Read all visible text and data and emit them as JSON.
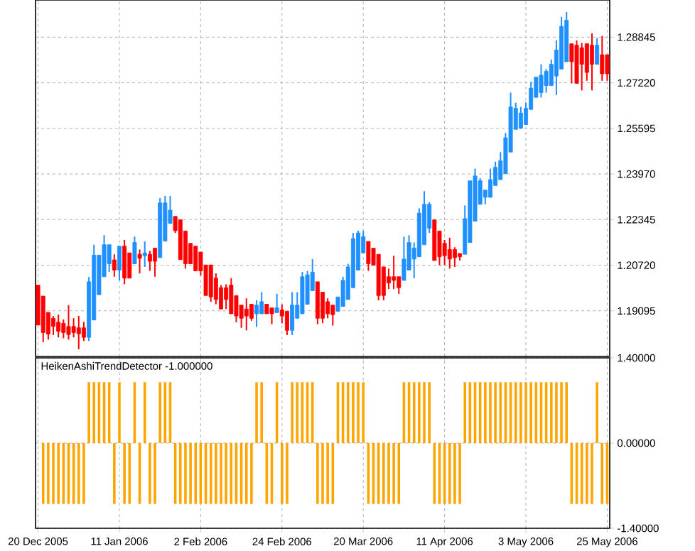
{
  "chart_data": [
    {
      "type": "candlestick",
      "categories": [
        null,
        null,
        null,
        null,
        null,
        null,
        null,
        null,
        null,
        null,
        null,
        null,
        null,
        null,
        null,
        null,
        null,
        null,
        null,
        null,
        null,
        null,
        null,
        null,
        null,
        null,
        null,
        null,
        null,
        null,
        null,
        null,
        null,
        null,
        null,
        null,
        null,
        null,
        null,
        null,
        null,
        null,
        null,
        null,
        null,
        null,
        null,
        null,
        null,
        null,
        null,
        null,
        null,
        null,
        null,
        null,
        null,
        null,
        null,
        null,
        null,
        null,
        null,
        null,
        null,
        null,
        null,
        null,
        null,
        null,
        null,
        null,
        null,
        null,
        null,
        null,
        null,
        null,
        null,
        null,
        null,
        null,
        null,
        null,
        null,
        null,
        null,
        null,
        null,
        null,
        null,
        null,
        null,
        null,
        null,
        null,
        null,
        null,
        null,
        null,
        null,
        null,
        null,
        null,
        null,
        null,
        null,
        null,
        null,
        null,
        null,
        null,
        null
      ],
      "ohlc": [
        [
          1.2001,
          1.2001,
          1.1859,
          1.1859
        ],
        [
          1.1962,
          1.1962,
          1.1798,
          1.1832
        ],
        [
          1.1904,
          1.1904,
          1.1807,
          1.1827
        ],
        [
          1.1883,
          1.1891,
          1.1823,
          1.1854
        ],
        [
          1.1869,
          1.1896,
          1.1815,
          1.1837
        ],
        [
          1.1865,
          1.1879,
          1.1812,
          1.1832
        ],
        [
          1.1854,
          1.193,
          1.1807,
          1.1825
        ],
        [
          1.1854,
          1.1883,
          1.1815,
          1.1832
        ],
        [
          1.1849,
          1.1891,
          1.1773,
          1.1828
        ],
        [
          1.1849,
          1.187,
          1.1802,
          1.1815
        ],
        [
          1.1815,
          1.203,
          1.1802,
          1.2013
        ],
        [
          1.1877,
          1.2145,
          1.1877,
          1.2108
        ],
        [
          1.1967,
          1.2108,
          1.1967,
          1.2108
        ],
        [
          1.2031,
          1.2179,
          1.2031,
          1.2145
        ],
        [
          1.2077,
          1.2145,
          1.2048,
          1.2145
        ],
        [
          1.2091,
          1.2111,
          1.2031,
          1.2055
        ],
        [
          1.2055,
          1.214,
          1.2018,
          1.214
        ],
        [
          1.214,
          1.2162,
          1.2004,
          1.2026
        ],
        [
          1.2116,
          1.2116,
          1.2026,
          1.2026
        ],
        [
          1.2077,
          1.2174,
          1.2077,
          1.2153
        ],
        [
          1.2111,
          1.2128,
          1.2043,
          1.2097
        ],
        [
          1.2106,
          1.2157,
          1.2066,
          1.2116
        ],
        [
          1.2111,
          1.2123,
          1.2052,
          1.2086
        ],
        [
          1.2133,
          1.2133,
          1.2031,
          1.2086
        ],
        [
          1.2099,
          1.2311,
          1.2099,
          1.2294
        ],
        [
          1.2158,
          1.2319,
          1.2158,
          1.2294
        ],
        [
          1.2221,
          1.2319,
          1.2221,
          1.2268
        ],
        [
          1.2246,
          1.2246,
          1.2187,
          1.2195
        ],
        [
          1.2234,
          1.2234,
          1.2092,
          1.2092
        ],
        [
          1.2194,
          1.2194,
          1.206,
          1.2077
        ],
        [
          1.215,
          1.215,
          1.2077,
          1.2077
        ],
        [
          1.214,
          1.214,
          1.2052,
          1.2052
        ],
        [
          1.2119,
          1.2119,
          1.2035,
          1.2052
        ],
        [
          1.2073,
          1.2073,
          1.1964,
          1.1964
        ],
        [
          1.2073,
          1.2073,
          1.1942,
          1.1959
        ],
        [
          1.2026,
          1.2043,
          1.1933,
          1.195
        ],
        [
          1.1992,
          1.2001,
          1.1916,
          1.1916
        ],
        [
          1.1992,
          1.2004,
          1.1916,
          1.195
        ],
        [
          1.2001,
          1.2026,
          1.1899,
          1.1899
        ],
        [
          1.1964,
          1.1964,
          1.1869,
          1.1891
        ],
        [
          1.193,
          1.193,
          1.1849,
          1.1883
        ],
        [
          1.1916,
          1.1954,
          1.184,
          1.1891
        ],
        [
          1.1933,
          1.1933,
          1.1874,
          1.1883
        ],
        [
          1.1899,
          1.1947,
          1.1852,
          1.193
        ],
        [
          1.1899,
          1.1976,
          1.1899,
          1.1942
        ],
        [
          1.1933,
          1.1933,
          1.1899,
          1.1899
        ],
        [
          1.192,
          1.192,
          1.1862,
          1.1899
        ],
        [
          1.1903,
          1.197,
          1.1903,
          1.192
        ],
        [
          1.1913,
          1.1933,
          1.1865,
          1.1891
        ],
        [
          1.1908,
          1.1908,
          1.1823,
          1.184
        ],
        [
          1.184,
          1.1976,
          1.1823,
          1.193
        ],
        [
          1.1883,
          1.1976,
          1.1883,
          1.193
        ],
        [
          1.1899,
          1.2048,
          1.1899,
          1.2031
        ],
        [
          1.1933,
          1.2052,
          1.1933,
          1.2038
        ],
        [
          1.1981,
          1.2094,
          1.1981,
          1.2047
        ],
        [
          1.2013,
          1.2013,
          1.1862,
          1.1883
        ],
        [
          1.1976,
          1.1976,
          1.1865,
          1.1883
        ],
        [
          1.1942,
          1.1954,
          1.1883,
          1.1899
        ],
        [
          1.193,
          1.193,
          1.1857,
          1.1896
        ],
        [
          1.1908,
          1.1959,
          1.1908,
          1.1959
        ],
        [
          1.1925,
          1.2031,
          1.1925,
          1.2018
        ],
        [
          1.195,
          1.2077,
          1.195,
          1.2066
        ],
        [
          1.1992,
          1.2187,
          1.1992,
          1.2167
        ],
        [
          1.2055,
          1.2195,
          1.2055,
          1.2187
        ],
        [
          1.2116,
          1.2195,
          1.2116,
          1.2174
        ],
        [
          1.2157,
          1.2157,
          1.2052,
          1.2077
        ],
        [
          1.2133,
          1.2133,
          1.2072,
          1.2072
        ],
        [
          1.2111,
          1.2111,
          1.1947,
          1.1964
        ],
        [
          1.2066,
          1.2066,
          1.1947,
          1.1964
        ],
        [
          1.2031,
          1.206,
          1.1987,
          1.2009
        ],
        [
          1.2031,
          1.2106,
          1.1987,
          1.2018
        ],
        [
          1.2031,
          1.2031,
          1.197,
          1.1992
        ],
        [
          1.2018,
          1.2174,
          1.2018,
          1.2094
        ],
        [
          1.2055,
          1.2179,
          1.2055,
          1.2153
        ],
        [
          1.2094,
          1.2153,
          1.2026,
          1.2133
        ],
        [
          1.2102,
          1.2275,
          1.2102,
          1.2258
        ],
        [
          1.2145,
          1.2336,
          1.2145,
          1.2289
        ],
        [
          1.2204,
          1.2297,
          1.2187,
          1.2289
        ],
        [
          1.2234,
          1.2234,
          1.2089,
          1.2089
        ],
        [
          1.2194,
          1.2194,
          1.2072,
          1.2102
        ],
        [
          1.215,
          1.2162,
          1.2072,
          1.2106
        ],
        [
          1.2128,
          1.217,
          1.206,
          1.2094
        ],
        [
          1.2128,
          1.2136,
          1.2066,
          1.2099
        ],
        [
          1.2114,
          1.2114,
          1.2089,
          1.2102
        ],
        [
          1.2111,
          1.2285,
          1.2111,
          1.2238
        ],
        [
          1.2153,
          1.2373,
          1.2153,
          1.2373
        ],
        [
          1.2229,
          1.2416,
          1.2229,
          1.239
        ],
        [
          1.2289,
          1.2382,
          1.2289,
          1.2373
        ],
        [
          1.2314,
          1.234,
          1.2289,
          1.234
        ],
        [
          1.2314,
          1.2416,
          1.2314,
          1.2377
        ],
        [
          1.2356,
          1.2441,
          1.2356,
          1.2421
        ],
        [
          1.2377,
          1.2475,
          1.2377,
          1.2444
        ],
        [
          1.2398,
          1.2543,
          1.2398,
          1.2526
        ],
        [
          1.2475,
          1.2687,
          1.2475,
          1.2636
        ],
        [
          1.2556,
          1.2651,
          1.2556,
          1.2631
        ],
        [
          1.256,
          1.2636,
          1.256,
          1.2614
        ],
        [
          1.2573,
          1.2652,
          1.2573,
          1.2631
        ],
        [
          1.2627,
          1.2725,
          1.2627,
          1.2703
        ],
        [
          1.267,
          1.2742,
          1.267,
          1.2742
        ],
        [
          1.2687,
          1.2788,
          1.267,
          1.2749
        ],
        [
          1.2712,
          1.2771,
          1.2687,
          1.2763
        ],
        [
          1.2712,
          1.2805,
          1.2712,
          1.2788
        ],
        [
          1.2746,
          1.2873,
          1.2678,
          1.2839
        ],
        [
          1.2771,
          1.2957,
          1.2771,
          1.2923
        ],
        [
          1.2797,
          1.2974,
          1.2797,
          1.2945
        ],
        [
          1.2861,
          1.2861,
          1.272,
          1.2797
        ],
        [
          1.2856,
          1.2873,
          1.272,
          1.272
        ],
        [
          1.2847,
          1.2864,
          1.2695,
          1.2788
        ],
        [
          1.2861,
          1.2861,
          1.2729,
          1.2759
        ],
        [
          1.2856,
          1.2898,
          1.2695,
          1.2788
        ],
        [
          1.2788,
          1.2881,
          1.2788,
          1.2856
        ],
        [
          1.2822,
          1.2889,
          1.2729,
          1.2754
        ],
        [
          1.2822,
          1.2822,
          1.2729,
          1.2754
        ]
      ],
      "colors": [
        "#ff0000",
        "#ff0000",
        "#ff0000",
        "#ff0000",
        "#ff0000",
        "#ff0000",
        "#ff0000",
        "#ff0000",
        "#ff0000",
        "#ff0000",
        "#1e90ff",
        "#1e90ff",
        "#1e90ff",
        "#1e90ff",
        "#1e90ff",
        "#ff0000",
        "#1e90ff",
        "#ff0000",
        "#ff0000",
        "#1e90ff",
        "#ff0000",
        "#1e90ff",
        "#ff0000",
        "#ff0000",
        "#1e90ff",
        "#1e90ff",
        "#1e90ff",
        "#ff0000",
        "#ff0000",
        "#ff0000",
        "#ff0000",
        "#ff0000",
        "#ff0000",
        "#ff0000",
        "#ff0000",
        "#ff0000",
        "#ff0000",
        "#ff0000",
        "#ff0000",
        "#ff0000",
        "#ff0000",
        "#ff0000",
        "#ff0000",
        "#1e90ff",
        "#1e90ff",
        "#ff0000",
        "#ff0000",
        "#1e90ff",
        "#ff0000",
        "#ff0000",
        "#1e90ff",
        "#1e90ff",
        "#1e90ff",
        "#1e90ff",
        "#1e90ff",
        "#ff0000",
        "#ff0000",
        "#ff0000",
        "#ff0000",
        "#1e90ff",
        "#1e90ff",
        "#1e90ff",
        "#1e90ff",
        "#1e90ff",
        "#1e90ff",
        "#ff0000",
        "#ff0000",
        "#ff0000",
        "#ff0000",
        "#ff0000",
        "#ff0000",
        "#ff0000",
        "#1e90ff",
        "#1e90ff",
        "#1e90ff",
        "#1e90ff",
        "#1e90ff",
        "#1e90ff",
        "#ff0000",
        "#ff0000",
        "#ff0000",
        "#ff0000",
        "#ff0000",
        "#ff0000",
        "#1e90ff",
        "#1e90ff",
        "#1e90ff",
        "#1e90ff",
        "#1e90ff",
        "#1e90ff",
        "#1e90ff",
        "#1e90ff",
        "#1e90ff",
        "#1e90ff",
        "#1e90ff",
        "#1e90ff",
        "#1e90ff",
        "#1e90ff",
        "#1e90ff",
        "#1e90ff",
        "#1e90ff",
        "#1e90ff",
        "#1e90ff",
        "#1e90ff",
        "#1e90ff",
        "#ff0000",
        "#ff0000",
        "#ff0000",
        "#ff0000",
        "#ff0000",
        "#1e90ff",
        "#ff0000",
        "#ff0000"
      ],
      "ylim": [
        1.1747,
        1.3017
      ],
      "yticks": [
        {
          "value": 1.19095,
          "label": "1.19095"
        },
        {
          "value": 1.2072,
          "label": "1.20720"
        },
        {
          "value": 1.22345,
          "label": "1.22345"
        },
        {
          "value": 1.2397,
          "label": "1.23970"
        },
        {
          "value": 1.25595,
          "label": "1.25595"
        },
        {
          "value": 1.2722,
          "label": "1.27220"
        },
        {
          "value": 1.28845,
          "label": "1.28845"
        }
      ],
      "grid": true,
      "tick_labels": "y"
    },
    {
      "type": "bar",
      "title": "HeikenAshiTrendDetector -1.000000",
      "categories": [
        "20 Dec 2005",
        null,
        null,
        null,
        null,
        null,
        null,
        null,
        null,
        null,
        null,
        null,
        null,
        null,
        null,
        null,
        "11 Jan 2006",
        null,
        null,
        null,
        null,
        null,
        null,
        null,
        null,
        null,
        null,
        null,
        null,
        null,
        null,
        null,
        "2 Feb 2006",
        null,
        null,
        null,
        null,
        null,
        null,
        null,
        null,
        null,
        null,
        null,
        null,
        null,
        null,
        null,
        "24 Feb 2006",
        null,
        null,
        null,
        null,
        null,
        null,
        null,
        null,
        null,
        null,
        null,
        null,
        null,
        null,
        null,
        "20 Mar 2006",
        null,
        null,
        null,
        null,
        null,
        null,
        null,
        null,
        null,
        null,
        null,
        null,
        null,
        null,
        null,
        "11 Apr 2006",
        null,
        null,
        null,
        null,
        null,
        null,
        null,
        null,
        null,
        null,
        null,
        null,
        null,
        null,
        null,
        "3 May 2006",
        null,
        null,
        null,
        null,
        null,
        null,
        null,
        null,
        null,
        null,
        null,
        null,
        null,
        null,
        null,
        "25 May 2006"
      ],
      "values": [
        null,
        -1,
        -1,
        -1,
        -1,
        -1,
        -1,
        -1,
        -1,
        -1,
        1,
        1,
        1,
        1,
        1,
        -1,
        1,
        -1,
        -1,
        1,
        -1,
        1,
        -1,
        -1,
        1,
        1,
        1,
        -1,
        -1,
        -1,
        -1,
        -1,
        -1,
        -1,
        -1,
        -1,
        -1,
        -1,
        -1,
        -1,
        -1,
        -1,
        -1,
        1,
        1,
        -1,
        -1,
        1,
        -1,
        -1,
        1,
        1,
        1,
        1,
        1,
        -1,
        -1,
        -1,
        -1,
        1,
        1,
        1,
        1,
        1,
        1,
        -1,
        -1,
        -1,
        -1,
        -1,
        -1,
        -1,
        1,
        1,
        1,
        1,
        1,
        1,
        -1,
        -1,
        -1,
        -1,
        -1,
        -1,
        1,
        1,
        1,
        1,
        1,
        1,
        1,
        1,
        1,
        1,
        1,
        1,
        1,
        1,
        1,
        1,
        1,
        1,
        1,
        1,
        1,
        -1,
        -1,
        -1,
        -1,
        -1,
        1,
        -1,
        -1
      ],
      "color": "#ffa500",
      "ylim": [
        -1.4,
        1.4
      ],
      "yticks": [
        {
          "value": -1.4,
          "label": "-1.40000"
        },
        {
          "value": 0,
          "label": "0.00000"
        },
        {
          "value": 1.4,
          "label": "1.40000"
        }
      ],
      "grid": true
    }
  ]
}
